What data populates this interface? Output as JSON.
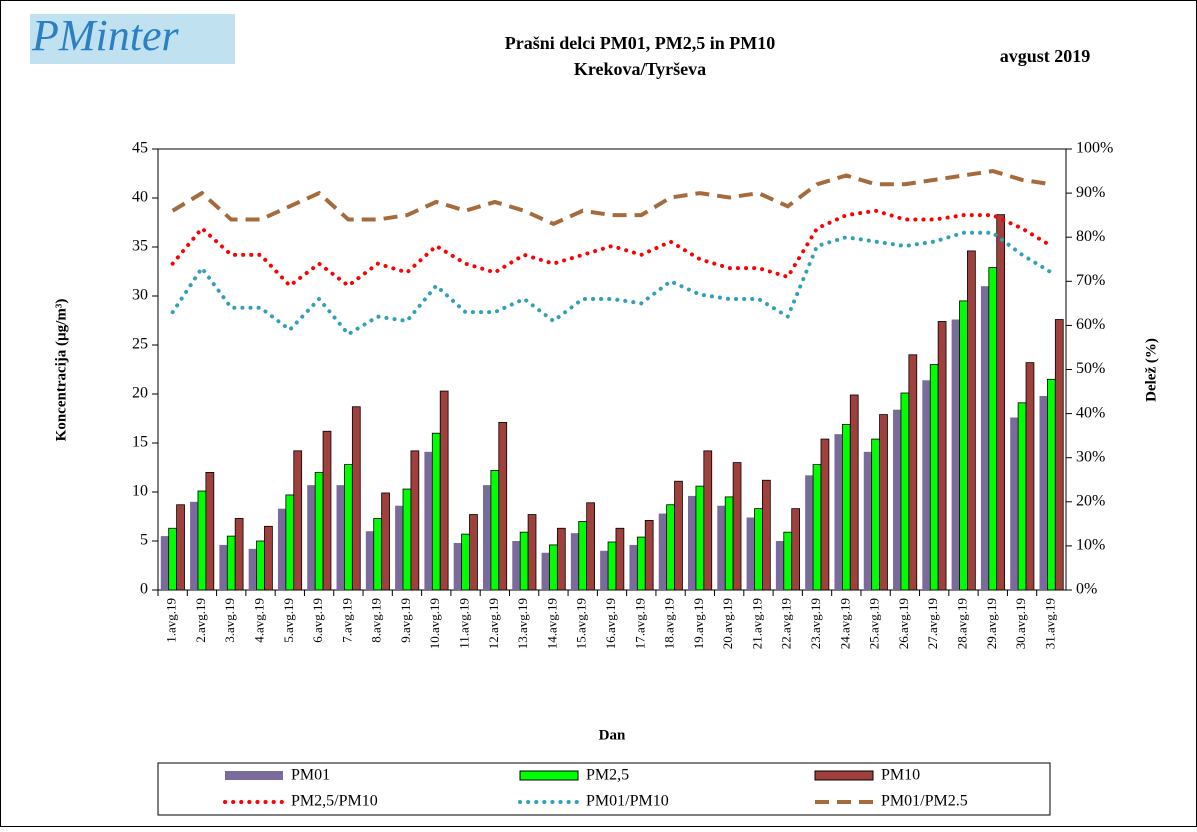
{
  "logo": "PMinter",
  "chart_data": {
    "type": "bar",
    "title": "Prašni delci PM01, PM2,5 in PM10",
    "subtitle": "Krekova/Tyrševa",
    "date_label": "avgust 2019",
    "xlabel": "Dan",
    "ylabel": "Koncentracija (µg/m³)",
    "y2label": "Delež (%)",
    "categories": [
      "1.avg.19",
      "2.avg.19",
      "3.avg.19",
      "4.avg.19",
      "5.avg.19",
      "6.avg.19",
      "7.avg.19",
      "8.avg.19",
      "9.avg.19",
      "10.avg.19",
      "11.avg.19",
      "12.avg.19",
      "13.avg.19",
      "14.avg.19",
      "15.avg.19",
      "16.avg.19",
      "17.avg.19",
      "18.avg.19",
      "19.avg.19",
      "20.avg.19",
      "21.avg.19",
      "22.avg.19",
      "23.avg.19",
      "24.avg.19",
      "25.avg.19",
      "26.avg.19",
      "27.avg.19",
      "28.avg.19",
      "29.avg.19",
      "30.avg.19",
      "31.avg.19"
    ],
    "ylim": [
      0,
      45
    ],
    "yticks": [
      0,
      5,
      10,
      15,
      20,
      25,
      30,
      35,
      40,
      45
    ],
    "y2lim": [
      0,
      100
    ],
    "y2ticks": [
      {
        "value": 0,
        "label": "0%"
      },
      {
        "value": 10,
        "label": "10%"
      },
      {
        "value": 20,
        "label": "20%"
      },
      {
        "value": 30,
        "label": "30%"
      },
      {
        "value": 40,
        "label": "40%"
      },
      {
        "value": 50,
        "label": "50%"
      },
      {
        "value": 60,
        "label": "60%"
      },
      {
        "value": 70,
        "label": "70%"
      },
      {
        "value": 80,
        "label": "80%"
      },
      {
        "value": 90,
        "label": "90%"
      },
      {
        "value": 100,
        "label": "100%"
      }
    ],
    "grid": false,
    "legend": "bottom",
    "series": [
      {
        "name": "PM01",
        "type": "bar",
        "color": "#7b6a9c",
        "values": [
          5.5,
          9.0,
          4.6,
          4.2,
          8.3,
          10.7,
          10.7,
          6.0,
          8.6,
          14.1,
          4.8,
          10.7,
          5.0,
          3.8,
          5.8,
          4.0,
          4.6,
          7.8,
          9.6,
          8.6,
          7.4,
          5.0,
          11.7,
          15.9,
          14.1,
          18.4,
          21.4,
          27.6,
          31.0,
          17.6,
          19.8
        ]
      },
      {
        "name": "PM2,5",
        "type": "bar",
        "color": "#00ff00",
        "values": [
          6.3,
          10.1,
          5.5,
          5.0,
          9.7,
          12.0,
          12.8,
          7.3,
          10.3,
          16.0,
          5.7,
          12.2,
          5.9,
          4.6,
          7.0,
          4.9,
          5.4,
          8.7,
          10.6,
          9.5,
          8.3,
          5.9,
          12.8,
          16.9,
          15.4,
          20.1,
          23.0,
          29.5,
          32.9,
          19.1,
          21.5
        ]
      },
      {
        "name": "PM10",
        "type": "bar",
        "color": "#a0403d",
        "values": [
          8.7,
          12.0,
          7.3,
          6.5,
          14.2,
          16.2,
          18.7,
          9.9,
          14.2,
          20.3,
          7.7,
          17.1,
          7.7,
          6.3,
          8.9,
          6.3,
          7.1,
          11.1,
          14.2,
          13.0,
          11.2,
          8.3,
          15.4,
          19.9,
          17.9,
          24.0,
          27.4,
          34.6,
          38.3,
          23.2,
          27.6
        ]
      },
      {
        "name": "PM2,5/PM10",
        "type": "line",
        "axis": "y2",
        "style": "dotted",
        "color": "#ff0000",
        "values": [
          74,
          82,
          76,
          76,
          69,
          74,
          69,
          74,
          72,
          78,
          74,
          72,
          76,
          74,
          76,
          78,
          76,
          79,
          75,
          73,
          73,
          71,
          82,
          85,
          86,
          84,
          84,
          85,
          85,
          82,
          78
        ]
      },
      {
        "name": "PM01/PM10",
        "type": "line",
        "axis": "y2",
        "style": "dotted",
        "color": "#31a0b8",
        "values": [
          63,
          73,
          64,
          64,
          59,
          66,
          58,
          62,
          61,
          69,
          63,
          63,
          66,
          61,
          66,
          66,
          65,
          70,
          67,
          66,
          66,
          62,
          78,
          80,
          79,
          78,
          79,
          81,
          81,
          76,
          72
        ]
      },
      {
        "name": "PM01/PM2.5",
        "type": "line",
        "axis": "y2",
        "style": "dashed",
        "color": "#a56b3c",
        "values": [
          86,
          90,
          84,
          84,
          87,
          90,
          84,
          84,
          85,
          88,
          86,
          88,
          86,
          83,
          86,
          85,
          85,
          89,
          90,
          89,
          90,
          87,
          92,
          94,
          92,
          92,
          93,
          94,
          95,
          93,
          92
        ]
      }
    ]
  }
}
